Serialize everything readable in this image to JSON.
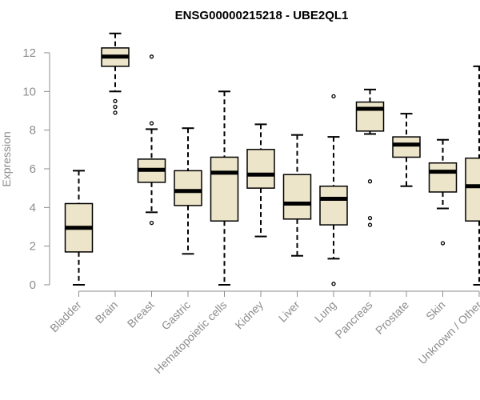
{
  "chart_data": {
    "type": "boxplot",
    "title": "ENSG00000215218 - UBE2QL1",
    "xlabel": "",
    "ylabel": "Expression",
    "ylim": [
      0,
      13
    ],
    "yticks": [
      0,
      2,
      4,
      6,
      8,
      10,
      12
    ],
    "grid": false,
    "legend": "none",
    "colors": {
      "box_fill": "#ede5c9",
      "stroke": "#000000",
      "axis": "#8c8c8c"
    },
    "categories": [
      "Bladder",
      "Brain",
      "Breast",
      "Gastric",
      "Hematopoietic cells",
      "Kidney",
      "Liver",
      "Lung",
      "Pancreas",
      "Prostate",
      "Skin",
      "Unknown / Other"
    ],
    "boxes": [
      {
        "category": "Bladder",
        "whisker_low": 0.0,
        "q1": 1.7,
        "median": 2.95,
        "q3": 4.2,
        "whisker_high": 5.9,
        "outliers": []
      },
      {
        "category": "Brain",
        "whisker_low": 10.0,
        "q1": 11.3,
        "median": 11.8,
        "q3": 12.25,
        "whisker_high": 13.0,
        "outliers": [
          9.5,
          9.2,
          8.9
        ]
      },
      {
        "category": "Breast",
        "whisker_low": 3.75,
        "q1": 5.3,
        "median": 5.95,
        "q3": 6.5,
        "whisker_high": 8.05,
        "outliers": [
          11.8,
          8.35,
          3.2
        ]
      },
      {
        "category": "Gastric",
        "whisker_low": 1.6,
        "q1": 4.1,
        "median": 4.85,
        "q3": 5.9,
        "whisker_high": 8.1,
        "outliers": []
      },
      {
        "category": "Hematopoietic cells",
        "whisker_low": 0.0,
        "q1": 3.3,
        "median": 5.8,
        "q3": 6.6,
        "whisker_high": 10.0,
        "outliers": []
      },
      {
        "category": "Kidney",
        "whisker_low": 2.5,
        "q1": 5.0,
        "median": 5.7,
        "q3": 7.0,
        "whisker_high": 8.3,
        "outliers": []
      },
      {
        "category": "Liver",
        "whisker_low": 1.5,
        "q1": 3.4,
        "median": 4.2,
        "q3": 5.7,
        "whisker_high": 7.75,
        "outliers": []
      },
      {
        "category": "Lung",
        "whisker_low": 1.35,
        "q1": 3.1,
        "median": 4.45,
        "q3": 5.1,
        "whisker_high": 7.65,
        "outliers": [
          9.75,
          0.05
        ]
      },
      {
        "category": "Pancreas",
        "whisker_low": 7.8,
        "q1": 7.95,
        "median": 9.1,
        "q3": 9.45,
        "whisker_high": 10.1,
        "outliers": [
          5.35,
          3.45,
          3.1
        ]
      },
      {
        "category": "Prostate",
        "whisker_low": 5.1,
        "q1": 6.6,
        "median": 7.25,
        "q3": 7.65,
        "whisker_high": 8.85,
        "outliers": []
      },
      {
        "category": "Skin",
        "whisker_low": 3.95,
        "q1": 4.8,
        "median": 5.85,
        "q3": 6.3,
        "whisker_high": 7.5,
        "outliers": [
          2.15
        ]
      },
      {
        "category": "Unknown / Other",
        "whisker_low": 0.0,
        "q1": 3.3,
        "median": 5.1,
        "q3": 6.55,
        "whisker_high": 11.3,
        "outliers": []
      }
    ]
  }
}
